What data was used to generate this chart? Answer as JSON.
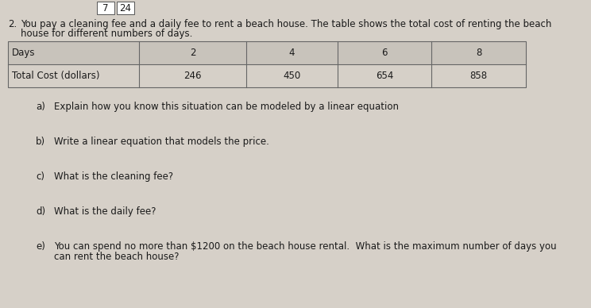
{
  "background_color": "#d6d0c8",
  "table_bg_color": "#ccc8c0",
  "table_row_shaded": "#c8c3bb",
  "table_line_color": "#666666",
  "text_color": "#1a1a1a",
  "top_boxes": [
    "7",
    "24"
  ],
  "header_number": "2.",
  "header_line1": "You pay a cleaning fee and a daily fee to rent a beach house. The table shows the total cost of renting the beach",
  "header_line2": "house for different numbers of days.",
  "table_col_headers": [
    "Days",
    "2",
    "4",
    "6",
    "8"
  ],
  "table_row2": [
    "Total Cost (dollars)",
    "246",
    "450",
    "654",
    "858"
  ],
  "questions": [
    {
      "label": "a)",
      "text": "Explain how you know this situation can be modeled by a linear equation"
    },
    {
      "label": "b)",
      "text": "Write a linear equation that models the price."
    },
    {
      "label": "c)",
      "text": "What is the cleaning fee?"
    },
    {
      "label": "d)",
      "text": "What is the daily fee?"
    },
    {
      "label": "e)",
      "text": "You can spend no more than $1200 on the beach house rental.  What is the maximum number of days you",
      "text2": "can rent the beach house?"
    }
  ],
  "font_size": 8.5,
  "font_size_small": 8.0
}
